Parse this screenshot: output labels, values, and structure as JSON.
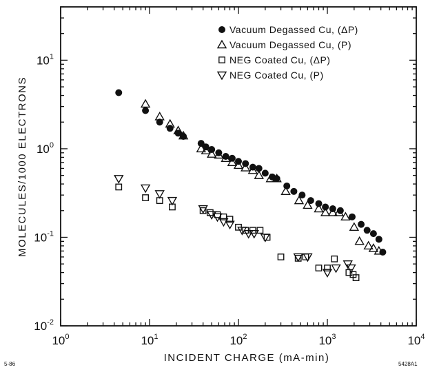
{
  "chart_data": {
    "type": "scatter",
    "title": "",
    "xlabel": "INCIDENT CHARGE    (mA-min)",
    "ylabel": "MOLECULES/1000 ELECTRONS",
    "xscale": "log",
    "yscale": "log",
    "xlim": [
      1,
      10000
    ],
    "ylim": [
      0.01,
      40
    ],
    "xticks": [
      {
        "base": "10",
        "exp": "0",
        "value": 1
      },
      {
        "base": "10",
        "exp": "1",
        "value": 10
      },
      {
        "base": "10",
        "exp": "2",
        "value": 100
      },
      {
        "base": "10",
        "exp": "3",
        "value": 1000
      },
      {
        "base": "10",
        "exp": "4",
        "value": 10000
      }
    ],
    "yticks": [
      {
        "base": "10",
        "exp": "-2",
        "value": 0.01
      },
      {
        "base": "10",
        "exp": "-1",
        "value": 0.1
      },
      {
        "base": "10",
        "exp": "0",
        "value": 1
      },
      {
        "base": "10",
        "exp": "1",
        "value": 10
      }
    ],
    "grid": false,
    "legend_position": "top-right",
    "series": [
      {
        "name": "Vacuum Degassed Cu, (ΔP)",
        "marker": "filled-circle",
        "x": [
          4.5,
          9,
          13,
          17,
          21,
          24,
          38,
          43,
          50,
          60,
          72,
          85,
          100,
          120,
          145,
          170,
          200,
          240,
          270,
          350,
          420,
          520,
          650,
          800,
          950,
          1150,
          1400,
          1900,
          2400,
          2800,
          3300,
          3800,
          4200
        ],
        "y": [
          4.3,
          2.7,
          2.0,
          1.7,
          1.5,
          1.38,
          1.15,
          1.05,
          0.98,
          0.9,
          0.82,
          0.78,
          0.72,
          0.68,
          0.62,
          0.6,
          0.53,
          0.48,
          0.46,
          0.38,
          0.33,
          0.3,
          0.26,
          0.24,
          0.22,
          0.21,
          0.2,
          0.17,
          0.14,
          0.12,
          0.11,
          0.095,
          0.068
        ]
      },
      {
        "name": "Vacuum Degassed Cu, (P)",
        "marker": "open-triangle-up",
        "x": [
          9,
          13,
          17,
          21,
          24,
          38,
          43,
          50,
          60,
          72,
          85,
          100,
          120,
          145,
          170,
          230,
          270,
          340,
          480,
          600,
          800,
          950,
          1150,
          1350,
          1600,
          2000,
          2300,
          2900,
          3300,
          3800
        ],
        "y": [
          3.2,
          2.3,
          1.9,
          1.6,
          1.4,
          1.0,
          0.95,
          0.87,
          0.85,
          0.78,
          0.7,
          0.65,
          0.61,
          0.57,
          0.5,
          0.46,
          0.46,
          0.33,
          0.26,
          0.23,
          0.21,
          0.19,
          0.19,
          0.19,
          0.17,
          0.13,
          0.09,
          0.08,
          0.075,
          0.07
        ]
      },
      {
        "name": "NEG Coated Cu, (ΔP)",
        "marker": "open-square",
        "x": [
          4.5,
          9,
          13,
          18,
          40,
          48,
          58,
          68,
          80,
          100,
          120,
          145,
          175,
          210,
          300,
          470,
          570,
          800,
          1000,
          1200,
          1750,
          1950,
          2100
        ],
        "y": [
          0.37,
          0.28,
          0.26,
          0.22,
          0.2,
          0.19,
          0.18,
          0.17,
          0.16,
          0.13,
          0.12,
          0.12,
          0.12,
          0.1,
          0.06,
          0.058,
          0.06,
          0.045,
          0.045,
          0.057,
          0.04,
          0.038,
          0.035
        ]
      },
      {
        "name": "NEG Coated Cu, (P)",
        "marker": "open-triangle-down",
        "x": [
          4.5,
          9,
          13,
          18,
          40,
          50,
          58,
          68,
          80,
          110,
          130,
          150,
          200,
          470,
          600,
          1000,
          1250,
          1700,
          1850
        ],
        "y": [
          0.46,
          0.36,
          0.31,
          0.26,
          0.21,
          0.18,
          0.17,
          0.15,
          0.14,
          0.12,
          0.11,
          0.11,
          0.1,
          0.06,
          0.06,
          0.04,
          0.045,
          0.05,
          0.045
        ]
      }
    ],
    "annotations": [
      "5-86",
      "5428A1"
    ]
  }
}
